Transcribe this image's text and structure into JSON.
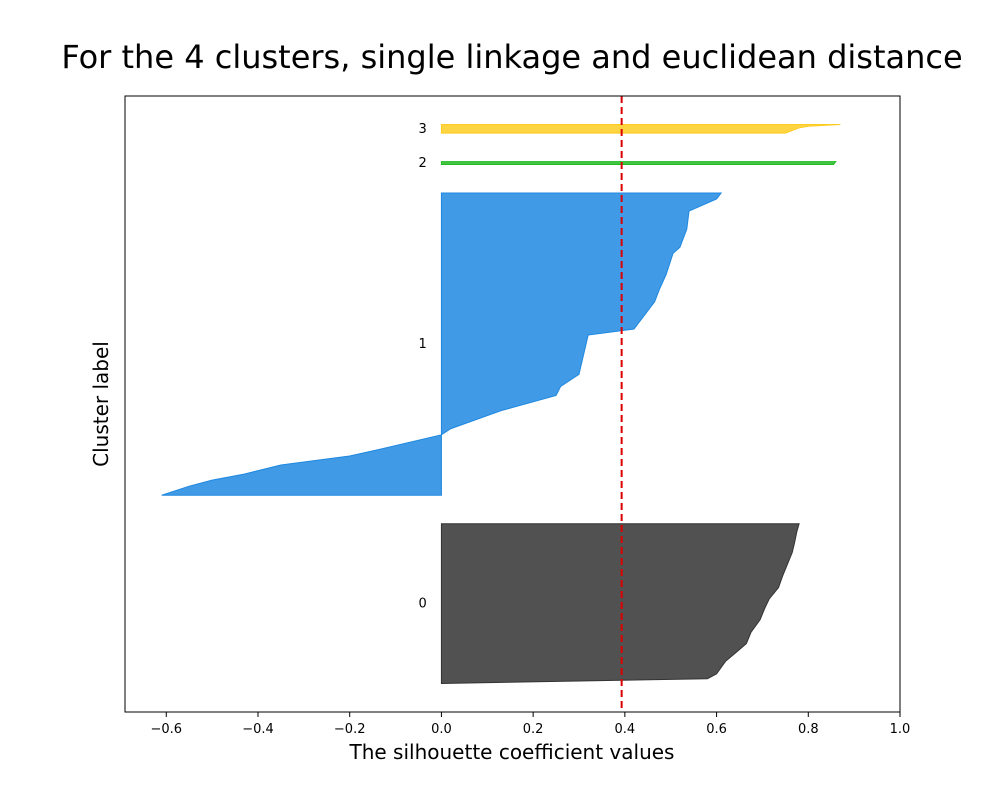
{
  "chart_data": {
    "type": "area",
    "title": "For the 4 clusters, single linkage and euclidean distance",
    "xlabel": "The silhouette coefficient values",
    "ylabel": "Cluster label",
    "xlim": [
      -0.69,
      1.0
    ],
    "xticks": [
      -0.6,
      -0.4,
      -0.2,
      0.0,
      0.2,
      0.4,
      0.6,
      0.8,
      1.0
    ],
    "xtick_labels": [
      "−0.6",
      "−0.4",
      "−0.2",
      "0.0",
      "0.2",
      "0.4",
      "0.6",
      "0.8",
      "1.0"
    ],
    "average_silhouette": 0.393,
    "average_line_color": "#dd0000",
    "clusters": [
      {
        "label": "0",
        "color": "#333333",
        "row_range": [
          10,
          66
        ],
        "profile": [
          [
            0.0,
            0.78
          ],
          [
            0.05,
            0.775
          ],
          [
            0.12,
            0.77
          ],
          [
            0.18,
            0.765
          ],
          [
            0.25,
            0.755
          ],
          [
            0.32,
            0.745
          ],
          [
            0.4,
            0.735
          ],
          [
            0.47,
            0.715
          ],
          [
            0.53,
            0.705
          ],
          [
            0.6,
            0.695
          ],
          [
            0.68,
            0.675
          ],
          [
            0.75,
            0.665
          ],
          [
            0.8,
            0.645
          ],
          [
            0.86,
            0.62
          ],
          [
            0.9,
            0.61
          ],
          [
            0.94,
            0.6
          ],
          [
            0.97,
            0.58
          ],
          [
            1.0,
            0.0
          ]
        ]
      },
      {
        "label": "1",
        "color": "#1f88e0",
        "row_range": [
          76,
          182
        ],
        "profile": [
          [
            0.0,
            0.61
          ],
          [
            0.02,
            0.6
          ],
          [
            0.06,
            0.54
          ],
          [
            0.12,
            0.535
          ],
          [
            0.18,
            0.52
          ],
          [
            0.2,
            0.505
          ],
          [
            0.27,
            0.49
          ],
          [
            0.32,
            0.475
          ],
          [
            0.36,
            0.465
          ],
          [
            0.45,
            0.42
          ],
          [
            0.47,
            0.32
          ],
          [
            0.6,
            0.3
          ],
          [
            0.64,
            0.26
          ],
          [
            0.67,
            0.25
          ],
          [
            0.72,
            0.13
          ],
          [
            0.78,
            0.02
          ],
          [
            0.8,
            0.0
          ],
          [
            0.85,
            -0.14
          ],
          [
            0.87,
            -0.2
          ],
          [
            0.9,
            -0.35
          ],
          [
            0.93,
            -0.43
          ],
          [
            0.95,
            -0.5
          ],
          [
            0.97,
            -0.55
          ],
          [
            1.0,
            -0.61
          ]
        ]
      },
      {
        "label": "2",
        "color": "#22bb22",
        "row_range": [
          192,
          193
        ],
        "profile": [
          [
            0.0,
            0.86
          ],
          [
            1.0,
            0.855
          ]
        ]
      },
      {
        "label": "3",
        "color": "#ffcc22",
        "row_range": [
          203,
          206
        ],
        "profile": [
          [
            0.0,
            0.87
          ],
          [
            0.2,
            0.8
          ],
          [
            0.4,
            0.78
          ],
          [
            1.0,
            0.75
          ]
        ]
      }
    ],
    "ylim": [
      0,
      216
    ]
  }
}
